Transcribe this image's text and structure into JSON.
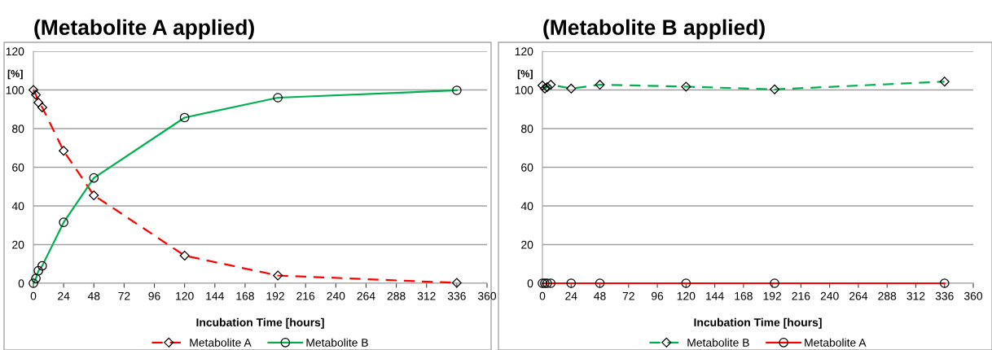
{
  "chart_data": [
    {
      "type": "line",
      "title": "(Metabolite A applied)",
      "xlabel": "Incubation Time [hours]",
      "ylabel": "[%]",
      "xlim": [
        0,
        360
      ],
      "xticks": [
        0,
        24,
        48,
        72,
        96,
        120,
        144,
        168,
        192,
        216,
        240,
        264,
        288,
        312,
        336,
        360
      ],
      "ylim": [
        0,
        120
      ],
      "yticks": [
        0,
        20,
        40,
        60,
        80,
        100,
        120
      ],
      "grid": "y",
      "legend": "bottom",
      "series": [
        {
          "name": "Metabolite A",
          "color": "#ff0000",
          "marker": "diamond",
          "line_style": "dashed",
          "x": [
            0,
            2,
            4,
            7,
            24,
            48,
            120,
            194,
            336
          ],
          "values": [
            100,
            97.5,
            93.5,
            91,
            68.5,
            45.5,
            14.3,
            4,
            0.2
          ]
        },
        {
          "name": "Metabolite B",
          "color": "#00b050",
          "marker": "circle",
          "line_style": "solid",
          "x": [
            0,
            2,
            4,
            7,
            24,
            48,
            120,
            194,
            336
          ],
          "values": [
            0,
            2.5,
            6.5,
            9,
            31.5,
            54.5,
            85.7,
            96,
            99.8
          ]
        }
      ]
    },
    {
      "type": "line",
      "title": "(Metabolite B applied)",
      "xlabel": "Incubation Time [hours]",
      "ylabel": "[%]",
      "xlim": [
        0,
        360
      ],
      "xticks": [
        0,
        24,
        48,
        72,
        96,
        120,
        144,
        168,
        192,
        216,
        240,
        264,
        288,
        312,
        336,
        360
      ],
      "ylim": [
        0,
        120
      ],
      "yticks": [
        0,
        20,
        40,
        60,
        80,
        100,
        120
      ],
      "grid": "y",
      "legend": "bottom",
      "series": [
        {
          "name": "Metabolite B",
          "color": "#00b050",
          "marker": "diamond",
          "line_style": "dashed",
          "x": [
            0,
            2,
            4,
            7,
            24,
            48,
            120,
            194,
            336
          ],
          "values": [
            102.3,
            100.7,
            101.5,
            102.7,
            100.7,
            102.7,
            101.7,
            100.3,
            104.3
          ]
        },
        {
          "name": "Metabolite A",
          "color": "#ff0000",
          "marker": "circle",
          "line_style": "solid",
          "x": [
            0,
            2,
            4,
            7,
            24,
            48,
            120,
            194,
            336
          ],
          "values": [
            0,
            0,
            0,
            0,
            0,
            0,
            0,
            0,
            0
          ]
        }
      ]
    }
  ]
}
